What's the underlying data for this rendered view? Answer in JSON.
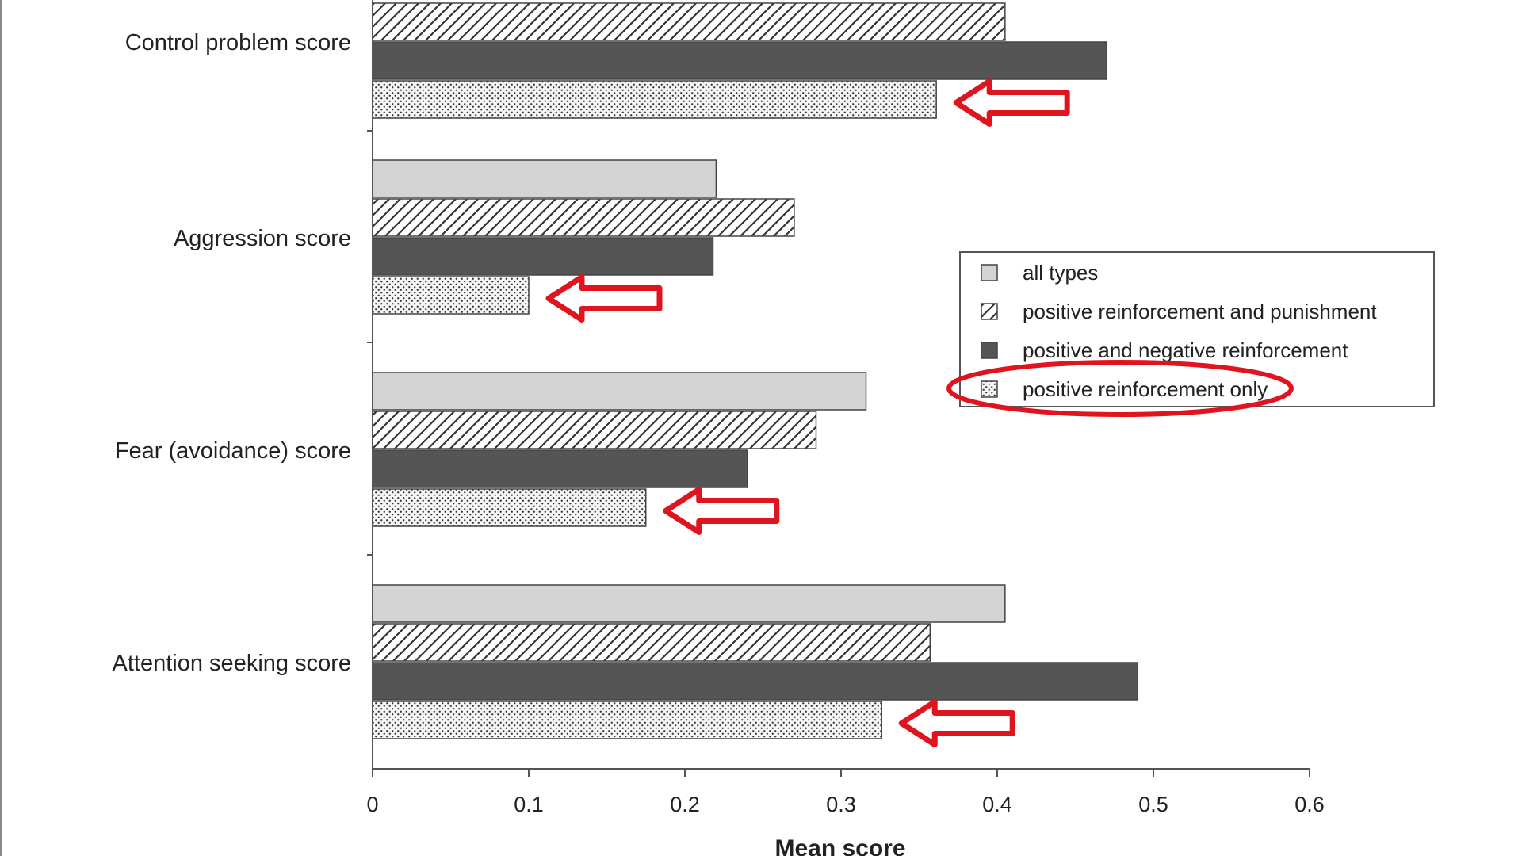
{
  "chart_data": {
    "type": "bar",
    "orientation": "horizontal",
    "categories": [
      "Control problem score",
      "Aggression score",
      "Fear (avoidance) score",
      "Attention seeking score"
    ],
    "series": [
      {
        "name": "all types",
        "pattern": "solid-light",
        "values": [
          null,
          0.22,
          0.316,
          0.405
        ]
      },
      {
        "name": "positive reinforcement and punishment",
        "pattern": "hatch",
        "values": [
          0.405,
          0.27,
          0.284,
          0.357
        ]
      },
      {
        "name": "positive and negative reinforcement",
        "pattern": "solid-dark",
        "values": [
          0.47,
          0.218,
          0.24,
          0.49
        ]
      },
      {
        "name": "positive reinforcement only",
        "pattern": "dots",
        "values": [
          0.361,
          0.1,
          0.175,
          0.326
        ]
      }
    ],
    "xlabel": "Mean score",
    "xlim": [
      0,
      0.6
    ],
    "xticks": [
      "0",
      "0.1",
      "0.2",
      "0.3",
      "0.4",
      "0.5",
      "0.6"
    ],
    "legend_position": "right-middle",
    "grid": false,
    "annotations": "red arrows point at each 'positive reinforcement only' bar; red ellipse circles that legend entry",
    "colors": {
      "light": "#d4d4d4",
      "dark": "#555555",
      "axis": "#555555",
      "annotation": "#e0141e"
    }
  }
}
